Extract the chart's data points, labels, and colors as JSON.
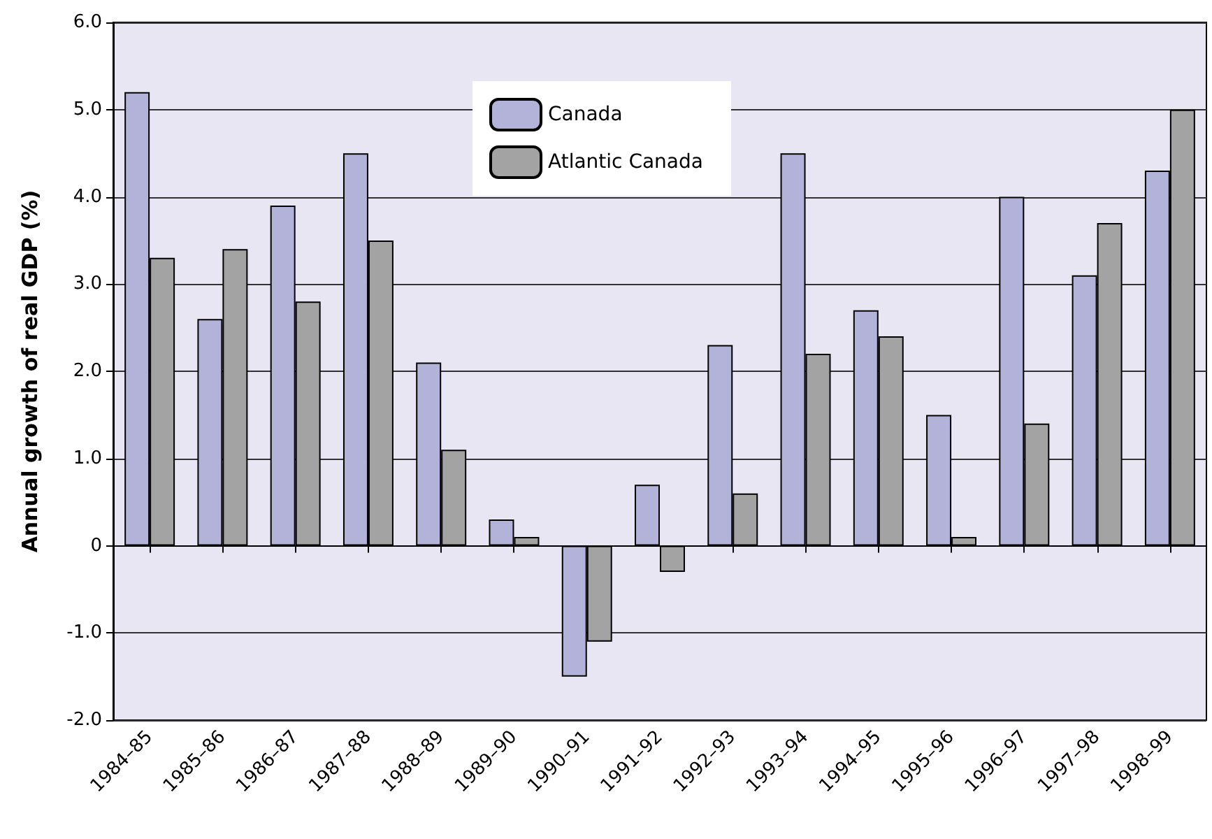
{
  "chart_data": {
    "type": "bar",
    "ylabel": "Annual growth of real GDP (%)",
    "categories": [
      "1984–85",
      "1985–86",
      "1986–87",
      "1987–88",
      "1988–89",
      "1989–90",
      "1990–91",
      "1991–92",
      "1992–93",
      "1993–94",
      "1994–95",
      "1995–96",
      "1996–97",
      "1997–98",
      "1998–99"
    ],
    "series": [
      {
        "name": "Canada",
        "color": "#b3b3d9",
        "values": [
          5.2,
          2.6,
          3.9,
          4.5,
          2.1,
          0.3,
          -1.5,
          0.7,
          2.3,
          4.5,
          2.7,
          1.5,
          4.0,
          3.1,
          4.3
        ]
      },
      {
        "name": "Atlantic Canada",
        "color": "#a3a3a3",
        "values": [
          3.3,
          3.4,
          2.8,
          3.5,
          1.1,
          0.1,
          -1.1,
          -0.3,
          0.6,
          2.2,
          2.4,
          0.1,
          1.4,
          3.7,
          5.0
        ]
      }
    ],
    "ylim": [
      -2,
      6
    ],
    "yticks": [
      {
        "value": -2,
        "label": "-2.0"
      },
      {
        "value": -1,
        "label": "-1.0"
      },
      0,
      {
        "value": 1,
        "label": "1.0"
      },
      {
        "value": 2,
        "label": "2.0"
      },
      {
        "value": 3,
        "label": "3.0"
      },
      {
        "value": 4,
        "label": "4.0"
      },
      {
        "value": 5,
        "label": "5.0"
      },
      {
        "value": 6,
        "label": "6.0"
      }
    ],
    "grid": "y",
    "legend": "top"
  }
}
